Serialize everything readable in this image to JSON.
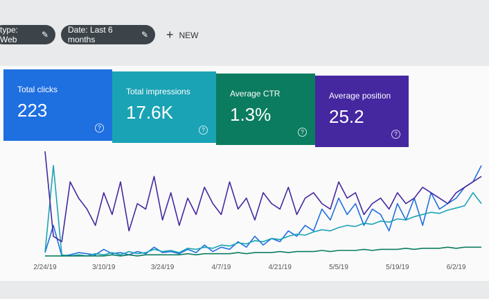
{
  "filters": [
    "type: Web",
    "Date: Last 6 months"
  ],
  "new_button": "NEW",
  "cards": [
    {
      "title": "Total clicks",
      "value": "223"
    },
    {
      "title": "Total impressions",
      "value": "17.6K"
    },
    {
      "title": "Average CTR",
      "value": "1.3%"
    },
    {
      "title": "Average position",
      "value": "25.2"
    }
  ],
  "chart_data": {
    "type": "line",
    "categories": [
      "2/24/19",
      null,
      null,
      null,
      null,
      null,
      null,
      "3/10/19",
      null,
      null,
      null,
      null,
      null,
      null,
      "3/24/19",
      null,
      null,
      null,
      null,
      null,
      null,
      "4/7/19",
      null,
      null,
      null,
      null,
      null,
      null,
      "4/21/19",
      null,
      null,
      null,
      null,
      null,
      null,
      "5/5/19",
      null,
      null,
      null,
      null,
      null,
      null,
      "5/19/19",
      null,
      null,
      null,
      null,
      null,
      null,
      "6/2/19",
      null,
      null,
      null
    ],
    "ylim": [
      0,
      100
    ],
    "series": [
      {
        "color": "#1e6fe0",
        "values": [
          5,
          30,
          2,
          3,
          5,
          4,
          3,
          8,
          4,
          5,
          3,
          6,
          4,
          10,
          5,
          6,
          4,
          8,
          5,
          12,
          6,
          10,
          8,
          15,
          10,
          20,
          12,
          18,
          15,
          25,
          20,
          30,
          25,
          45,
          35,
          55,
          40,
          50,
          30,
          45,
          40,
          25,
          50,
          35,
          55,
          30,
          60,
          45,
          50,
          55,
          65,
          70,
          85
        ]
      },
      {
        "color": "#1aa3b4",
        "values": [
          5,
          85,
          3,
          2,
          3,
          2,
          4,
          3,
          5,
          3,
          6,
          4,
          5,
          8,
          6,
          7,
          5,
          9,
          8,
          10,
          9,
          12,
          11,
          14,
          13,
          16,
          15,
          18,
          17,
          20,
          22,
          21,
          24,
          26,
          25,
          28,
          30,
          29,
          32,
          31,
          34,
          33,
          36,
          35,
          38,
          40,
          42,
          41,
          44,
          46,
          48,
          60,
          50
        ]
      },
      {
        "color": "#0b7c5f",
        "values": [
          2,
          2,
          2,
          2,
          2,
          2,
          2,
          2,
          3,
          2,
          3,
          2,
          3,
          3,
          3,
          3,
          3,
          4,
          3,
          4,
          4,
          4,
          4,
          5,
          4,
          5,
          5,
          5,
          6,
          5,
          6,
          6,
          6,
          7,
          6,
          7,
          7,
          7,
          8,
          7,
          8,
          8,
          8,
          9,
          8,
          9,
          9,
          9,
          10,
          9,
          10,
          10,
          10
        ]
      },
      {
        "color": "#4527a0",
        "values": [
          98,
          20,
          15,
          70,
          55,
          45,
          30,
          60,
          40,
          70,
          25,
          50,
          45,
          75,
          35,
          60,
          30,
          55,
          40,
          65,
          50,
          40,
          70,
          45,
          55,
          35,
          60,
          50,
          45,
          65,
          40,
          55,
          60,
          50,
          45,
          70,
          55,
          60,
          40,
          50,
          55,
          45,
          60,
          50,
          55,
          65,
          60,
          55,
          50,
          60,
          65,
          70,
          75
        ]
      }
    ]
  }
}
